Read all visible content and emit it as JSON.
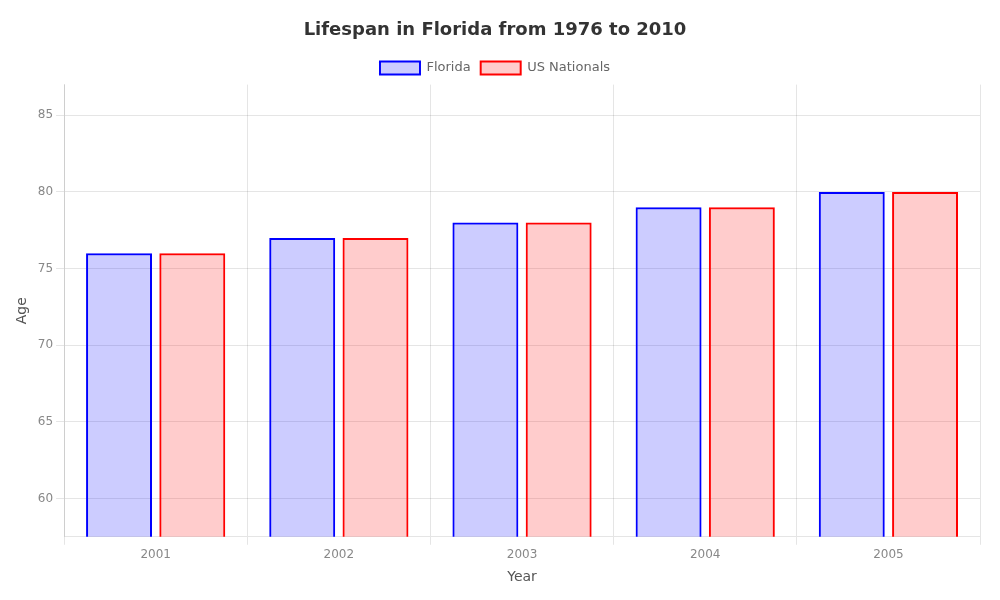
{
  "chart_data": {
    "type": "bar",
    "title": "Lifespan in Florida from 1976 to 2010",
    "xlabel": "Year",
    "ylabel": "Age",
    "categories": [
      "2001",
      "2002",
      "2003",
      "2004",
      "2005"
    ],
    "series": [
      {
        "name": "Florida",
        "color": "#0000ff",
        "values": [
          76,
          77,
          78,
          79,
          80
        ]
      },
      {
        "name": "US Nationals",
        "color": "#ff0000",
        "values": [
          76,
          77,
          78,
          79,
          80
        ]
      }
    ],
    "ylim": [
      57.5,
      87
    ],
    "yticks": [
      60,
      65,
      70,
      75,
      80,
      85
    ],
    "grid": true,
    "legend": "top"
  }
}
